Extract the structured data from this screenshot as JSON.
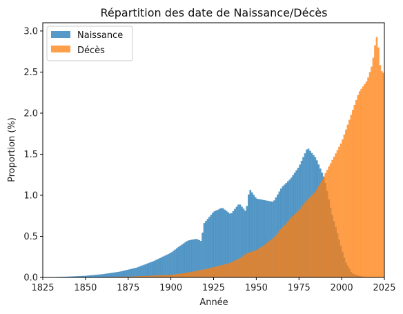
{
  "chart_data": {
    "type": "area",
    "title": "Répartition des date de Naissance/Décès",
    "xlabel": "Année",
    "ylabel": "Proportion (%)",
    "xlim": [
      1825,
      2025
    ],
    "ylim": [
      0,
      3.1
    ],
    "xticks": [
      "1825",
      "1850",
      "1875",
      "1900",
      "1925",
      "1950",
      "1975",
      "2000",
      "2025"
    ],
    "yticks": [
      "0.0",
      "0.5",
      "1.0",
      "1.5",
      "2.0",
      "2.5",
      "3.0"
    ],
    "legend_position": "top-left",
    "bin_width_years": 1,
    "series": [
      {
        "name": "Naissance",
        "color": "#1f77b4",
        "points": [
          [
            1825,
            0.0
          ],
          [
            1840,
            0.01
          ],
          [
            1850,
            0.02
          ],
          [
            1860,
            0.04
          ],
          [
            1870,
            0.07
          ],
          [
            1880,
            0.12
          ],
          [
            1890,
            0.2
          ],
          [
            1900,
            0.3
          ],
          [
            1905,
            0.38
          ],
          [
            1910,
            0.45
          ],
          [
            1915,
            0.47
          ],
          [
            1918,
            0.44
          ],
          [
            1919,
            0.65
          ],
          [
            1925,
            0.8
          ],
          [
            1930,
            0.85
          ],
          [
            1935,
            0.77
          ],
          [
            1940,
            0.9
          ],
          [
            1944,
            0.8
          ],
          [
            1946,
            1.08
          ],
          [
            1950,
            0.96
          ],
          [
            1955,
            0.94
          ],
          [
            1960,
            0.92
          ],
          [
            1965,
            1.1
          ],
          [
            1970,
            1.2
          ],
          [
            1975,
            1.35
          ],
          [
            1980,
            1.58
          ],
          [
            1985,
            1.45
          ],
          [
            1990,
            1.2
          ],
          [
            1994,
            0.8
          ],
          [
            1998,
            0.5
          ],
          [
            2002,
            0.2
          ],
          [
            2006,
            0.05
          ],
          [
            2010,
            0.02
          ],
          [
            2015,
            0.0
          ],
          [
            2025,
            0.0
          ]
        ]
      },
      {
        "name": "Décès",
        "color": "#ff7f0e",
        "points": [
          [
            1825,
            0.0
          ],
          [
            1850,
            0.0
          ],
          [
            1875,
            0.01
          ],
          [
            1900,
            0.03
          ],
          [
            1910,
            0.06
          ],
          [
            1920,
            0.1
          ],
          [
            1930,
            0.15
          ],
          [
            1935,
            0.18
          ],
          [
            1940,
            0.23
          ],
          [
            1945,
            0.3
          ],
          [
            1950,
            0.33
          ],
          [
            1955,
            0.4
          ],
          [
            1960,
            0.48
          ],
          [
            1965,
            0.6
          ],
          [
            1970,
            0.72
          ],
          [
            1975,
            0.82
          ],
          [
            1980,
            0.95
          ],
          [
            1985,
            1.05
          ],
          [
            1990,
            1.25
          ],
          [
            1995,
            1.45
          ],
          [
            2000,
            1.65
          ],
          [
            2005,
            1.95
          ],
          [
            2010,
            2.25
          ],
          [
            2015,
            2.4
          ],
          [
            2018,
            2.6
          ],
          [
            2020,
            2.9
          ],
          [
            2021,
            2.95
          ],
          [
            2022,
            2.65
          ],
          [
            2023,
            2.52
          ],
          [
            2025,
            2.48
          ]
        ]
      }
    ]
  }
}
